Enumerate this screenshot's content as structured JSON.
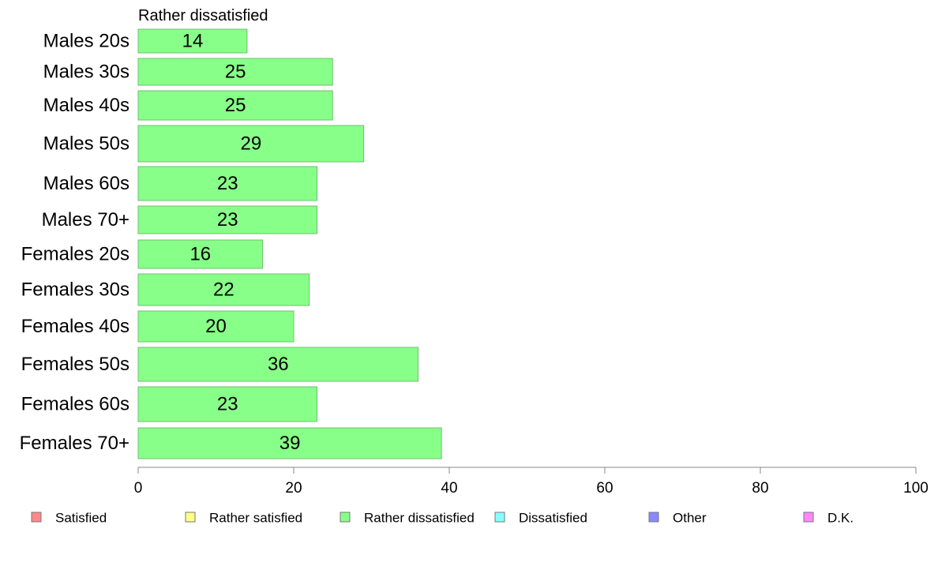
{
  "chart_data": {
    "type": "bar",
    "orientation": "horizontal",
    "title": "Rather dissatisfied",
    "categories": [
      "Males 20s",
      "Males 30s",
      "Males 40s",
      "Males 50s",
      "Males 60s",
      "Males 70+",
      "Females 20s",
      "Females 30s",
      "Females 40s",
      "Females 50s",
      "Females 60s",
      "Females 70+"
    ],
    "values": [
      14,
      25,
      25,
      29,
      23,
      23,
      16,
      22,
      20,
      36,
      23,
      39
    ],
    "value_labels": [
      "14",
      "25",
      "25",
      "29",
      "23",
      "23",
      "16",
      "22",
      "20",
      "36",
      "23",
      "39"
    ],
    "xlim": [
      0,
      100
    ],
    "x_ticks": [
      0,
      20,
      40,
      60,
      80,
      100
    ],
    "x_tick_labels": [
      "0",
      "20",
      "40",
      "60",
      "80",
      "100"
    ],
    "bar_color": "#88ff88",
    "grid": false,
    "legend_position": "bottom",
    "legend": [
      {
        "label": "Satisfied",
        "color": "#ff8888"
      },
      {
        "label": "Rather satisfied",
        "color": "#ffff88"
      },
      {
        "label": "Rather dissatisfied",
        "color": "#88ff88"
      },
      {
        "label": "Dissatisfied",
        "color": "#88ffff"
      },
      {
        "label": "Other",
        "color": "#8888ff"
      },
      {
        "label": "D.K.",
        "color": "#ff88ff"
      }
    ]
  }
}
